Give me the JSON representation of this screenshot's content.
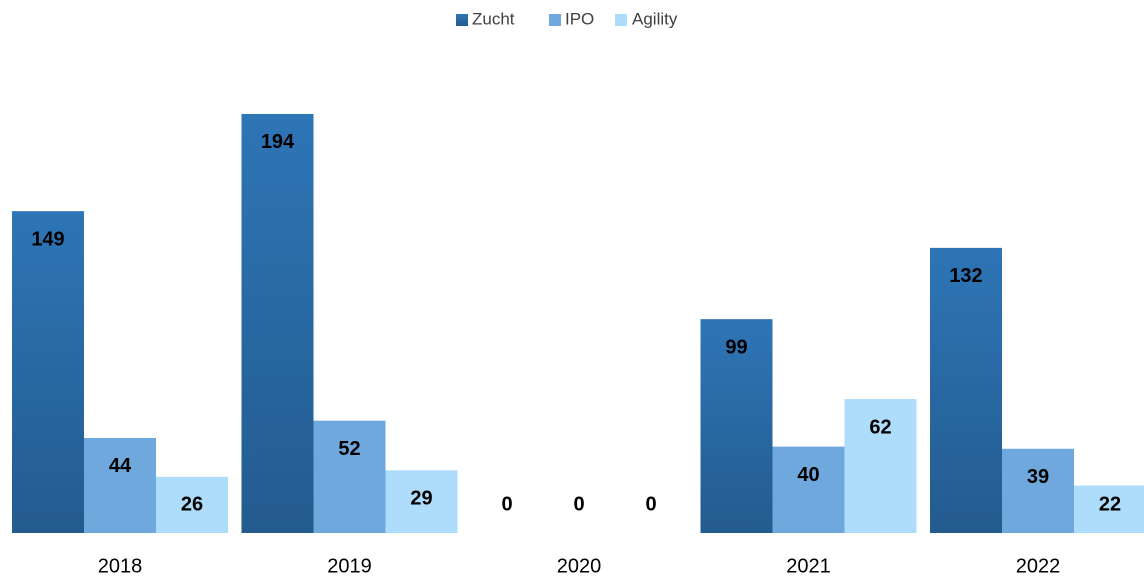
{
  "chart_data": {
    "type": "bar",
    "categories": [
      "2018",
      "2019",
      "2020",
      "2021",
      "2022"
    ],
    "series": [
      {
        "name": "Zucht",
        "color": "#2e75b6",
        "values": [
          149,
          194,
          0,
          99,
          132
        ]
      },
      {
        "name": "IPO",
        "color": "#6fa8dc",
        "values": [
          44,
          52,
          0,
          40,
          39
        ]
      },
      {
        "name": "Agility",
        "color": "#aedcfb",
        "values": [
          26,
          29,
          0,
          62,
          22
        ]
      }
    ],
    "ylim": [
      0,
      200
    ],
    "legend": "top"
  }
}
